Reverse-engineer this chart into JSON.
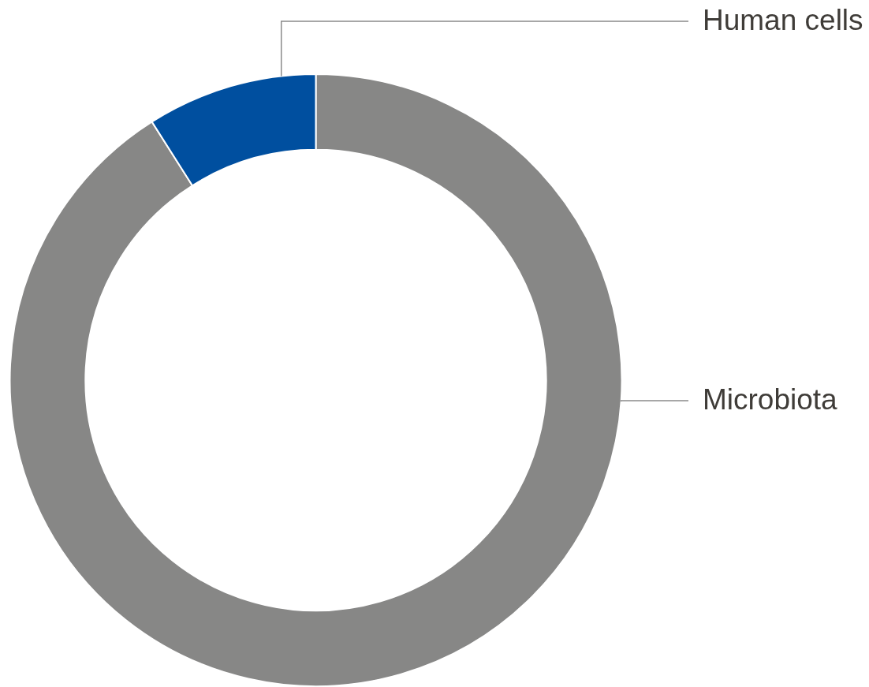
{
  "chart_data": {
    "type": "donut",
    "categories": [
      "Microbiota",
      "Human cells"
    ],
    "values": [
      91,
      9
    ],
    "colors": [
      "#878786",
      "#004f9f"
    ]
  }
}
